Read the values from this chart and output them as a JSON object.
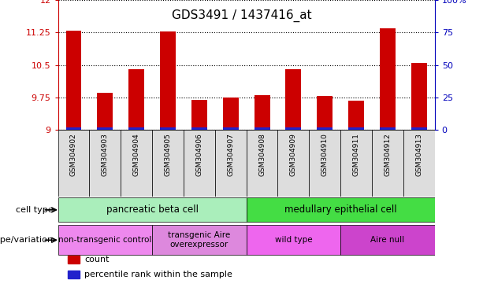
{
  "title": "GDS3491 / 1437416_at",
  "samples": [
    "GSM304902",
    "GSM304903",
    "GSM304904",
    "GSM304905",
    "GSM304906",
    "GSM304907",
    "GSM304908",
    "GSM304909",
    "GSM304910",
    "GSM304911",
    "GSM304912",
    "GSM304913"
  ],
  "count_values": [
    11.3,
    9.85,
    10.4,
    11.28,
    9.7,
    9.75,
    9.8,
    10.4,
    9.78,
    9.68,
    11.35,
    10.55
  ],
  "percentile_values": [
    2,
    2,
    2,
    2,
    2,
    2,
    2,
    2,
    2,
    2,
    2,
    2
  ],
  "ylim_left": [
    9,
    12
  ],
  "ylim_right": [
    0,
    100
  ],
  "yticks_left": [
    9,
    9.75,
    10.5,
    11.25,
    12
  ],
  "yticks_right": [
    0,
    25,
    50,
    75,
    100
  ],
  "ytick_labels_left": [
    "9",
    "9.75",
    "10.5",
    "11.25",
    "12"
  ],
  "ytick_labels_right": [
    "0",
    "25",
    "50",
    "75",
    "100%"
  ],
  "bar_color_red": "#cc0000",
  "bar_color_blue": "#2222cc",
  "cell_type_groups": [
    {
      "label": "pancreatic beta cell",
      "start": 0,
      "end": 5,
      "color": "#aaeebb"
    },
    {
      "label": "medullary epithelial cell",
      "start": 6,
      "end": 11,
      "color": "#44dd44"
    }
  ],
  "genotype_groups": [
    {
      "label": "non-transgenic control",
      "start": 0,
      "end": 2,
      "color": "#ee88ee"
    },
    {
      "label": "transgenic Aire\noverexpressor",
      "start": 3,
      "end": 5,
      "color": "#dd88dd"
    },
    {
      "label": "wild type",
      "start": 6,
      "end": 8,
      "color": "#ee66ee"
    },
    {
      "label": "Aire null",
      "start": 9,
      "end": 11,
      "color": "#cc44cc"
    }
  ],
  "legend_items": [
    {
      "label": "count",
      "color": "#cc0000"
    },
    {
      "label": "percentile rank within the sample",
      "color": "#2222cc"
    }
  ],
  "cell_type_label": "cell type",
  "genotype_label": "genotype/variation",
  "background_color": "#ffffff",
  "tick_color_left": "#cc0000",
  "tick_color_right": "#0000bb",
  "grid_color": "#000000",
  "xtick_bg": "#dddddd"
}
